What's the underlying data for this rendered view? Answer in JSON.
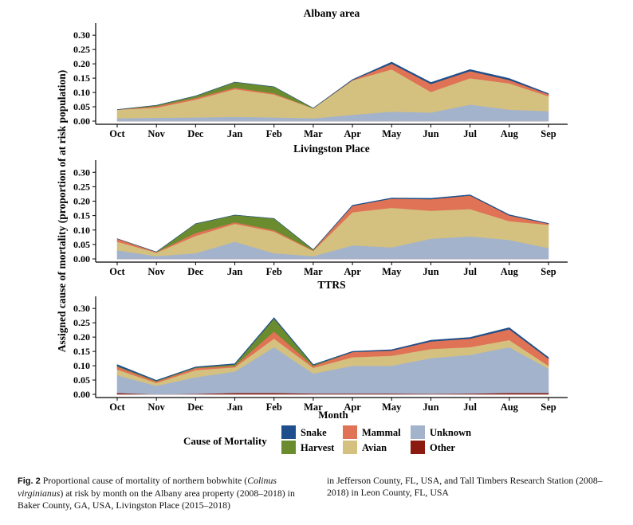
{
  "chart_data": {
    "type": "area",
    "stacked": true,
    "ylabel": "Assigned cause of mortality  (proportion of at risk population)",
    "xlabel": "Month",
    "categories": [
      "Oct",
      "Nov",
      "Dec",
      "Jan",
      "Feb",
      "Mar",
      "Apr",
      "May",
      "Jun",
      "Jul",
      "Aug",
      "Sep"
    ],
    "y_ticks": [
      "0.00",
      "0.05",
      "0.10",
      "0.15",
      "0.20",
      "0.25",
      "0.30"
    ],
    "ylim": [
      0,
      0.32
    ],
    "legend": {
      "title": "Cause of Mortality",
      "placement": "bottom",
      "entries": [
        {
          "key": "snake",
          "label": "Snake",
          "color": "#1f4e8c"
        },
        {
          "key": "harvest",
          "label": "Harvest",
          "color": "#6b8c2e"
        },
        {
          "key": "mammal",
          "label": "Mammal",
          "color": "#e07256"
        },
        {
          "key": "avian",
          "label": "Avian",
          "color": "#d4c17f"
        },
        {
          "key": "unknown",
          "label": "Unknown",
          "color": "#a3b3cc"
        },
        {
          "key": "other",
          "label": "Other",
          "color": "#8b1a10"
        }
      ]
    },
    "stack_order": [
      "other",
      "unknown",
      "avian",
      "mammal",
      "harvest",
      "snake"
    ],
    "panels": [
      {
        "title": "Albany area",
        "series": {
          "other": [
            0,
            0,
            0,
            0,
            0,
            0,
            0,
            0,
            0,
            0,
            0,
            0
          ],
          "unknown": [
            0.01,
            0.012,
            0.013,
            0.015,
            0.013,
            0.01,
            0.022,
            0.033,
            0.03,
            0.058,
            0.04,
            0.035
          ],
          "avian": [
            0.03,
            0.035,
            0.062,
            0.097,
            0.08,
            0.035,
            0.12,
            0.148,
            0.072,
            0.092,
            0.092,
            0.052
          ],
          "mammal": [
            0.0,
            0.005,
            0.006,
            0.005,
            0.004,
            0.0,
            0.002,
            0.02,
            0.028,
            0.025,
            0.012,
            0.007
          ],
          "harvest": [
            0.0,
            0.003,
            0.007,
            0.019,
            0.023,
            0.0,
            0,
            0,
            0,
            0,
            0,
            0
          ],
          "snake": [
            0,
            0,
            0,
            0,
            0,
            0,
            0.001,
            0.005,
            0.005,
            0.005,
            0.005,
            0.002
          ]
        }
      },
      {
        "title": "Livingston Place",
        "series": {
          "other": [
            0,
            0,
            0,
            0,
            0,
            0,
            0,
            0,
            0,
            0,
            0,
            0
          ],
          "unknown": [
            0.03,
            0.01,
            0.02,
            0.06,
            0.02,
            0.01,
            0.047,
            0.04,
            0.07,
            0.078,
            0.066,
            0.038
          ],
          "avian": [
            0.03,
            0.012,
            0.06,
            0.062,
            0.075,
            0.018,
            0.115,
            0.137,
            0.097,
            0.095,
            0.065,
            0.08
          ],
          "mammal": [
            0.01,
            0.002,
            0.01,
            0.005,
            0.005,
            0.002,
            0.022,
            0.032,
            0.04,
            0.047,
            0.02,
            0.004
          ],
          "harvest": [
            0.0,
            0.0,
            0.032,
            0.025,
            0.04,
            0.002,
            0,
            0,
            0,
            0,
            0,
            0
          ],
          "snake": [
            0,
            0,
            0,
            0,
            0,
            0,
            0.002,
            0.002,
            0.003,
            0.002,
            0.002,
            0.001
          ]
        }
      },
      {
        "title": "TTRS",
        "series": {
          "other": [
            0.005,
            0.0,
            0.002,
            0.005,
            0.005,
            0.003,
            0.003,
            0.003,
            0.002,
            0.003,
            0.005,
            0.005
          ],
          "unknown": [
            0.062,
            0.03,
            0.058,
            0.075,
            0.16,
            0.07,
            0.097,
            0.097,
            0.125,
            0.135,
            0.16,
            0.085
          ],
          "avian": [
            0.02,
            0.01,
            0.025,
            0.015,
            0.03,
            0.02,
            0.03,
            0.035,
            0.032,
            0.027,
            0.025,
            0.01
          ],
          "mammal": [
            0.01,
            0.005,
            0.007,
            0.005,
            0.025,
            0.006,
            0.018,
            0.018,
            0.026,
            0.03,
            0.038,
            0.025
          ],
          "harvest": [
            0.002,
            0.002,
            0.002,
            0.005,
            0.045,
            0.003,
            0,
            0,
            0,
            0,
            0,
            0
          ],
          "snake": [
            0.005,
            0.002,
            0.002,
            0.002,
            0.003,
            0.002,
            0.002,
            0.003,
            0.004,
            0.004,
            0.005,
            0.004
          ]
        }
      }
    ]
  },
  "caption": {
    "fig_label": "Fig. 2",
    "left_text_1": "Proportional cause of mortality of northern bobwhite (",
    "left_species": "Colinus virginianus",
    "left_text_2": ") at risk by month on the Albany area property (2008–2018) in Baker County, GA, USA, Livingston Place (2015–2018)",
    "right_text": "in Jefferson County, FL, USA, and Tall Timbers Research Station (2008–2018) in Leon County, FL, USA"
  }
}
